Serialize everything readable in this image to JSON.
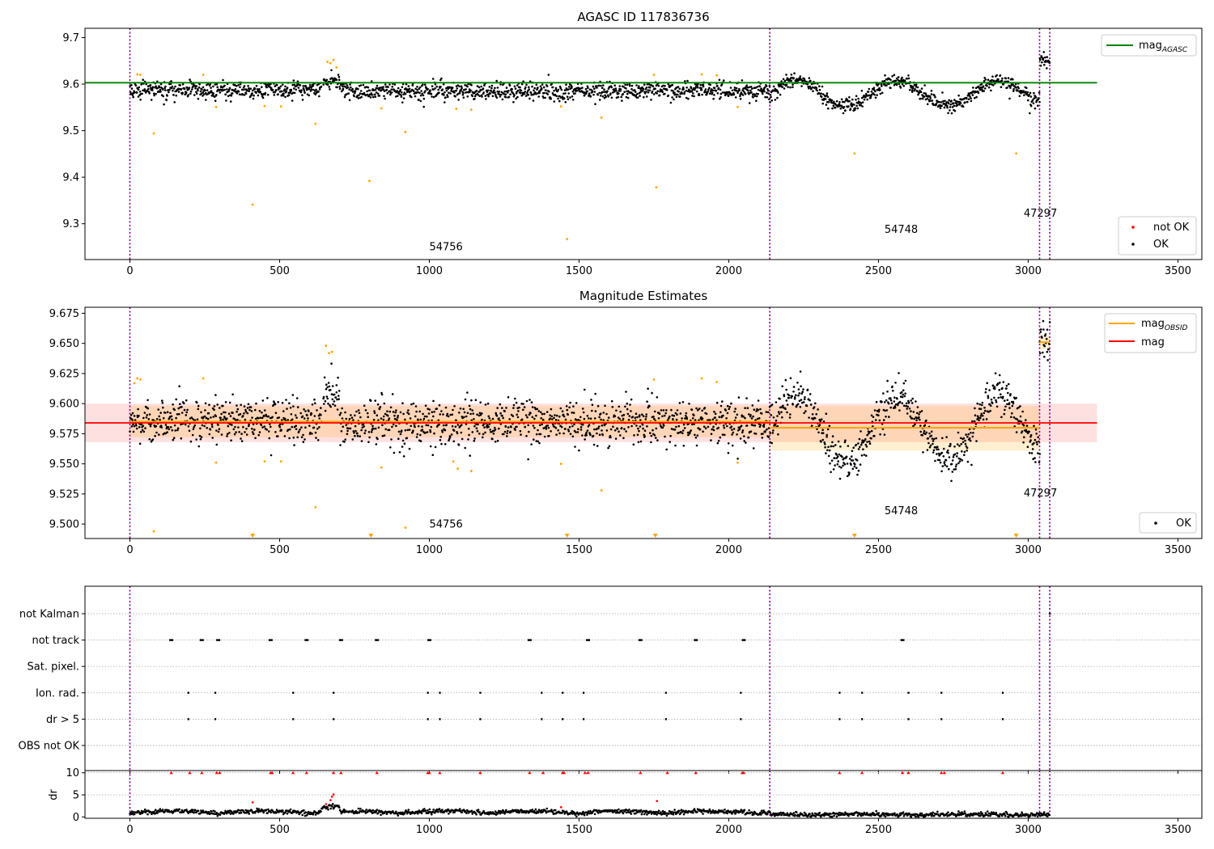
{
  "chart_data": [
    {
      "type": "scatter",
      "title": "AGASC ID 117836736",
      "xlim": [
        -150,
        3580
      ],
      "ylim": [
        9.223,
        9.72
      ],
      "x_ticks": [
        0,
        500,
        1000,
        1500,
        2000,
        2500,
        3000,
        3500
      ],
      "y_ticks": [
        9.3,
        9.4,
        9.5,
        9.6,
        9.7
      ],
      "y_tick_labels": [
        "9.3",
        "9.4",
        "9.5",
        "9.6",
        "9.7"
      ],
      "obs_boundaries": [
        0,
        2137,
        3038,
        3072
      ],
      "obs_labels": [
        {
          "x": 1000,
          "y": 9.243,
          "text": "54756"
        },
        {
          "x": 2520,
          "y": 9.28,
          "text": "54748"
        },
        {
          "x": 2985,
          "y": 9.315,
          "text": "47297"
        }
      ],
      "mag_agasc": {
        "value": 9.603,
        "x": [
          -150,
          3230
        ]
      },
      "outliers": [
        [
          25,
          9.621
        ],
        [
          35,
          9.62
        ],
        [
          80,
          9.494
        ],
        [
          245,
          9.62
        ],
        [
          288,
          9.551
        ],
        [
          410,
          9.341
        ],
        [
          450,
          9.553
        ],
        [
          505,
          9.552
        ],
        [
          620,
          9.515
        ],
        [
          660,
          9.648
        ],
        [
          670,
          9.645
        ],
        [
          680,
          9.652
        ],
        [
          690,
          9.636
        ],
        [
          800,
          9.392
        ],
        [
          840,
          9.548
        ],
        [
          920,
          9.497
        ],
        [
          1090,
          9.547
        ],
        [
          1140,
          9.545
        ],
        [
          1440,
          9.552
        ],
        [
          1460,
          9.267
        ],
        [
          1575,
          9.528
        ],
        [
          1750,
          9.62
        ],
        [
          1758,
          9.378
        ],
        [
          1910,
          9.621
        ],
        [
          1960,
          9.619
        ],
        [
          2030,
          9.551
        ],
        [
          2420,
          9.451
        ],
        [
          2960,
          9.451
        ]
      ],
      "segments": [
        {
          "x0": 0,
          "x1": 640,
          "mean": 9.588,
          "spread": 0.012
        },
        {
          "x0": 645,
          "x1": 700,
          "mean": 9.608,
          "spread": 0.012
        },
        {
          "x0": 700,
          "x1": 2137,
          "mean": 9.585,
          "spread": 0.012
        },
        {
          "x0": 2137,
          "x1": 3038,
          "mean": 9.58,
          "wave": 0.027,
          "spread": 0.011
        },
        {
          "x0": 3038,
          "x1": 3072,
          "mean": 9.65,
          "spread": 0.011
        }
      ],
      "legend": [
        {
          "label": "mag",
          "sub": "AGASC",
          "color": "#008000"
        },
        {
          "label": "not OK",
          "color": "#ff0000"
        },
        {
          "label": "OK",
          "color": "#000000"
        }
      ]
    },
    {
      "type": "scatter",
      "title": "Magnitude Estimates",
      "xlim": [
        -150,
        3580
      ],
      "ylim": [
        9.488,
        9.68
      ],
      "x_ticks": [
        0,
        500,
        1000,
        1500,
        2000,
        2500,
        3000,
        3500
      ],
      "y_ticks": [
        9.5,
        9.525,
        9.55,
        9.575,
        9.6,
        9.625,
        9.65,
        9.675
      ],
      "y_tick_labels": [
        "9.500",
        "9.525",
        "9.550",
        "9.575",
        "9.600",
        "9.625",
        "9.650",
        "9.675"
      ],
      "obs_boundaries": [
        0,
        2137,
        3038,
        3072
      ],
      "obs_labels": [
        {
          "x": 1000,
          "y": 9.497,
          "text": "54756"
        },
        {
          "x": 2520,
          "y": 9.508,
          "text": "54748"
        },
        {
          "x": 2985,
          "y": 9.523,
          "text": "47297"
        }
      ],
      "mag": {
        "value": 9.584,
        "band": [
          9.568,
          9.6
        ],
        "x": [
          -150,
          3230
        ]
      },
      "mag_obsid": [
        {
          "x0": 0,
          "x1": 2137,
          "value": 9.585,
          "band": [
            9.572,
            9.598
          ]
        },
        {
          "x0": 2137,
          "x1": 3038,
          "value": 9.58,
          "band": [
            9.561,
            9.598
          ]
        },
        {
          "x0": 3038,
          "x1": 3072,
          "value": 9.651,
          "band": [
            9.645,
            9.657
          ]
        }
      ],
      "outliers": [
        [
          15,
          9.617
        ],
        [
          25,
          9.621
        ],
        [
          35,
          9.62
        ],
        [
          80,
          9.494
        ],
        [
          245,
          9.621
        ],
        [
          288,
          9.551
        ],
        [
          450,
          9.552
        ],
        [
          505,
          9.552
        ],
        [
          620,
          9.514
        ],
        [
          655,
          9.648
        ],
        [
          665,
          9.642
        ],
        [
          675,
          9.643
        ],
        [
          840,
          9.547
        ],
        [
          920,
          9.497
        ],
        [
          1080,
          9.552
        ],
        [
          1095,
          9.546
        ],
        [
          1140,
          9.544
        ],
        [
          1440,
          9.55
        ],
        [
          1575,
          9.528
        ],
        [
          1750,
          9.62
        ],
        [
          1910,
          9.621
        ],
        [
          1960,
          9.618
        ],
        [
          2030,
          9.551
        ]
      ],
      "offscale": [
        410,
        805,
        1460,
        1755,
        2420,
        2960
      ],
      "segments": [
        {
          "x0": 0,
          "x1": 640,
          "mean": 9.586,
          "spread": 0.012
        },
        {
          "x0": 645,
          "x1": 700,
          "mean": 9.607,
          "spread": 0.012
        },
        {
          "x0": 700,
          "x1": 2137,
          "mean": 9.584,
          "spread": 0.012
        },
        {
          "x0": 2137,
          "x1": 3038,
          "mean": 9.58,
          "wave": 0.027,
          "spread": 0.011
        },
        {
          "x0": 3038,
          "x1": 3072,
          "mean": 9.652,
          "spread": 0.01
        }
      ],
      "legend": [
        {
          "label": "mag",
          "sub": "OBSID",
          "color": "#ffa500"
        },
        {
          "label": "mag",
          "color": "#ff0000"
        },
        {
          "label": "OK",
          "color": "#000000"
        }
      ]
    },
    {
      "type": "scatter",
      "title": "",
      "xlim": [
        -150,
        3580
      ],
      "x_ticks": [
        0,
        500,
        1000,
        1500,
        2000,
        2500,
        3000,
        3500
      ],
      "obs_boundaries": [
        0,
        2137,
        3038,
        3072
      ],
      "flag_rows": [
        "not Kalman",
        "not track",
        "Sat. pixel.",
        "Ion. rad.",
        "dr > 5",
        "OBS not OK"
      ],
      "flags": {
        "not Kalman": [
          3072
        ],
        "not track": [
          138,
          240,
          295,
          470,
          590,
          705,
          825,
          1000,
          1335,
          1530,
          1705,
          1890,
          2050,
          2580
        ],
        "Sat. pixel.": [],
        "Ion. rad.": [
          195,
          285,
          545,
          680,
          995,
          1035,
          1170,
          1375,
          1445,
          1515,
          1790,
          2040,
          2370,
          2445,
          2600,
          2710,
          2915
        ],
        "dr > 5": [
          195,
          285,
          545,
          680,
          995,
          1035,
          1170,
          1375,
          1445,
          1515,
          1790,
          2040,
          2370,
          2445,
          2600,
          2710,
          2915
        ],
        "OBS not OK": []
      },
      "dr": {
        "ylabel": "dr",
        "ylim": [
          -0.3,
          10.5
        ],
        "y_ticks": [
          0,
          5,
          10
        ],
        "y_tick_labels": [
          "0",
          "5",
          "10"
        ],
        "capped": [
          138,
          200,
          240,
          290,
          300,
          470,
          475,
          545,
          590,
          680,
          705,
          825,
          995,
          1000,
          1035,
          1170,
          1335,
          1380,
          1445,
          1450,
          1520,
          1530,
          1705,
          1795,
          1890,
          2045,
          2050,
          2370,
          2445,
          2580,
          2600,
          2710,
          2720,
          2915
        ],
        "red_points": [
          [
            410,
            3.3
          ],
          [
            655,
            2.9
          ],
          [
            670,
            3.8
          ],
          [
            675,
            4.6
          ],
          [
            680,
            5.1
          ],
          [
            1760,
            3.6
          ],
          [
            1440,
            2.2
          ]
        ]
      }
    }
  ]
}
